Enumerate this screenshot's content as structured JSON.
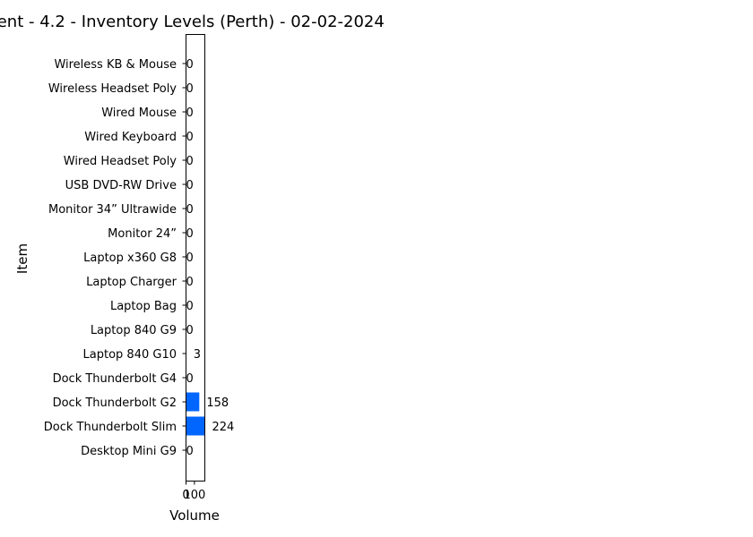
{
  "chart_data": {
    "type": "bar",
    "orientation": "horizontal",
    "title": "ment - 4.2 - Inventory Levels (Perth) - 02-02-2024",
    "xlabel": "Volume",
    "ylabel": "Item",
    "categories": [
      "Wireless KB & Mouse",
      "Wireless Headset Poly",
      "Wired Mouse",
      "Wired Keyboard",
      "Wired Headset Poly",
      "USB DVD-RW Drive",
      "Monitor 34” Ultrawide",
      "Monitor 24”",
      "Laptop x360 G8",
      "Laptop Charger",
      "Laptop Bag",
      "Laptop 840 G9",
      "Laptop 840 G10",
      "Dock Thunderbolt G4",
      "Dock Thunderbolt G2",
      "Dock Thunderbolt Slim",
      "Desktop Mini G9"
    ],
    "values": [
      0,
      0,
      0,
      0,
      0,
      0,
      0,
      0,
      0,
      0,
      0,
      0,
      3,
      0,
      158,
      224,
      0
    ],
    "data_labels": [
      "0",
      "0",
      "0",
      "0",
      "0",
      "0",
      "0",
      "0",
      "0",
      "0",
      "0",
      "0",
      "3",
      "0",
      "158",
      "224",
      "0"
    ],
    "xticks": [
      "0",
      "100"
    ],
    "xlim": [
      0,
      224
    ],
    "grid": false,
    "bar_color": "#0066ff"
  }
}
